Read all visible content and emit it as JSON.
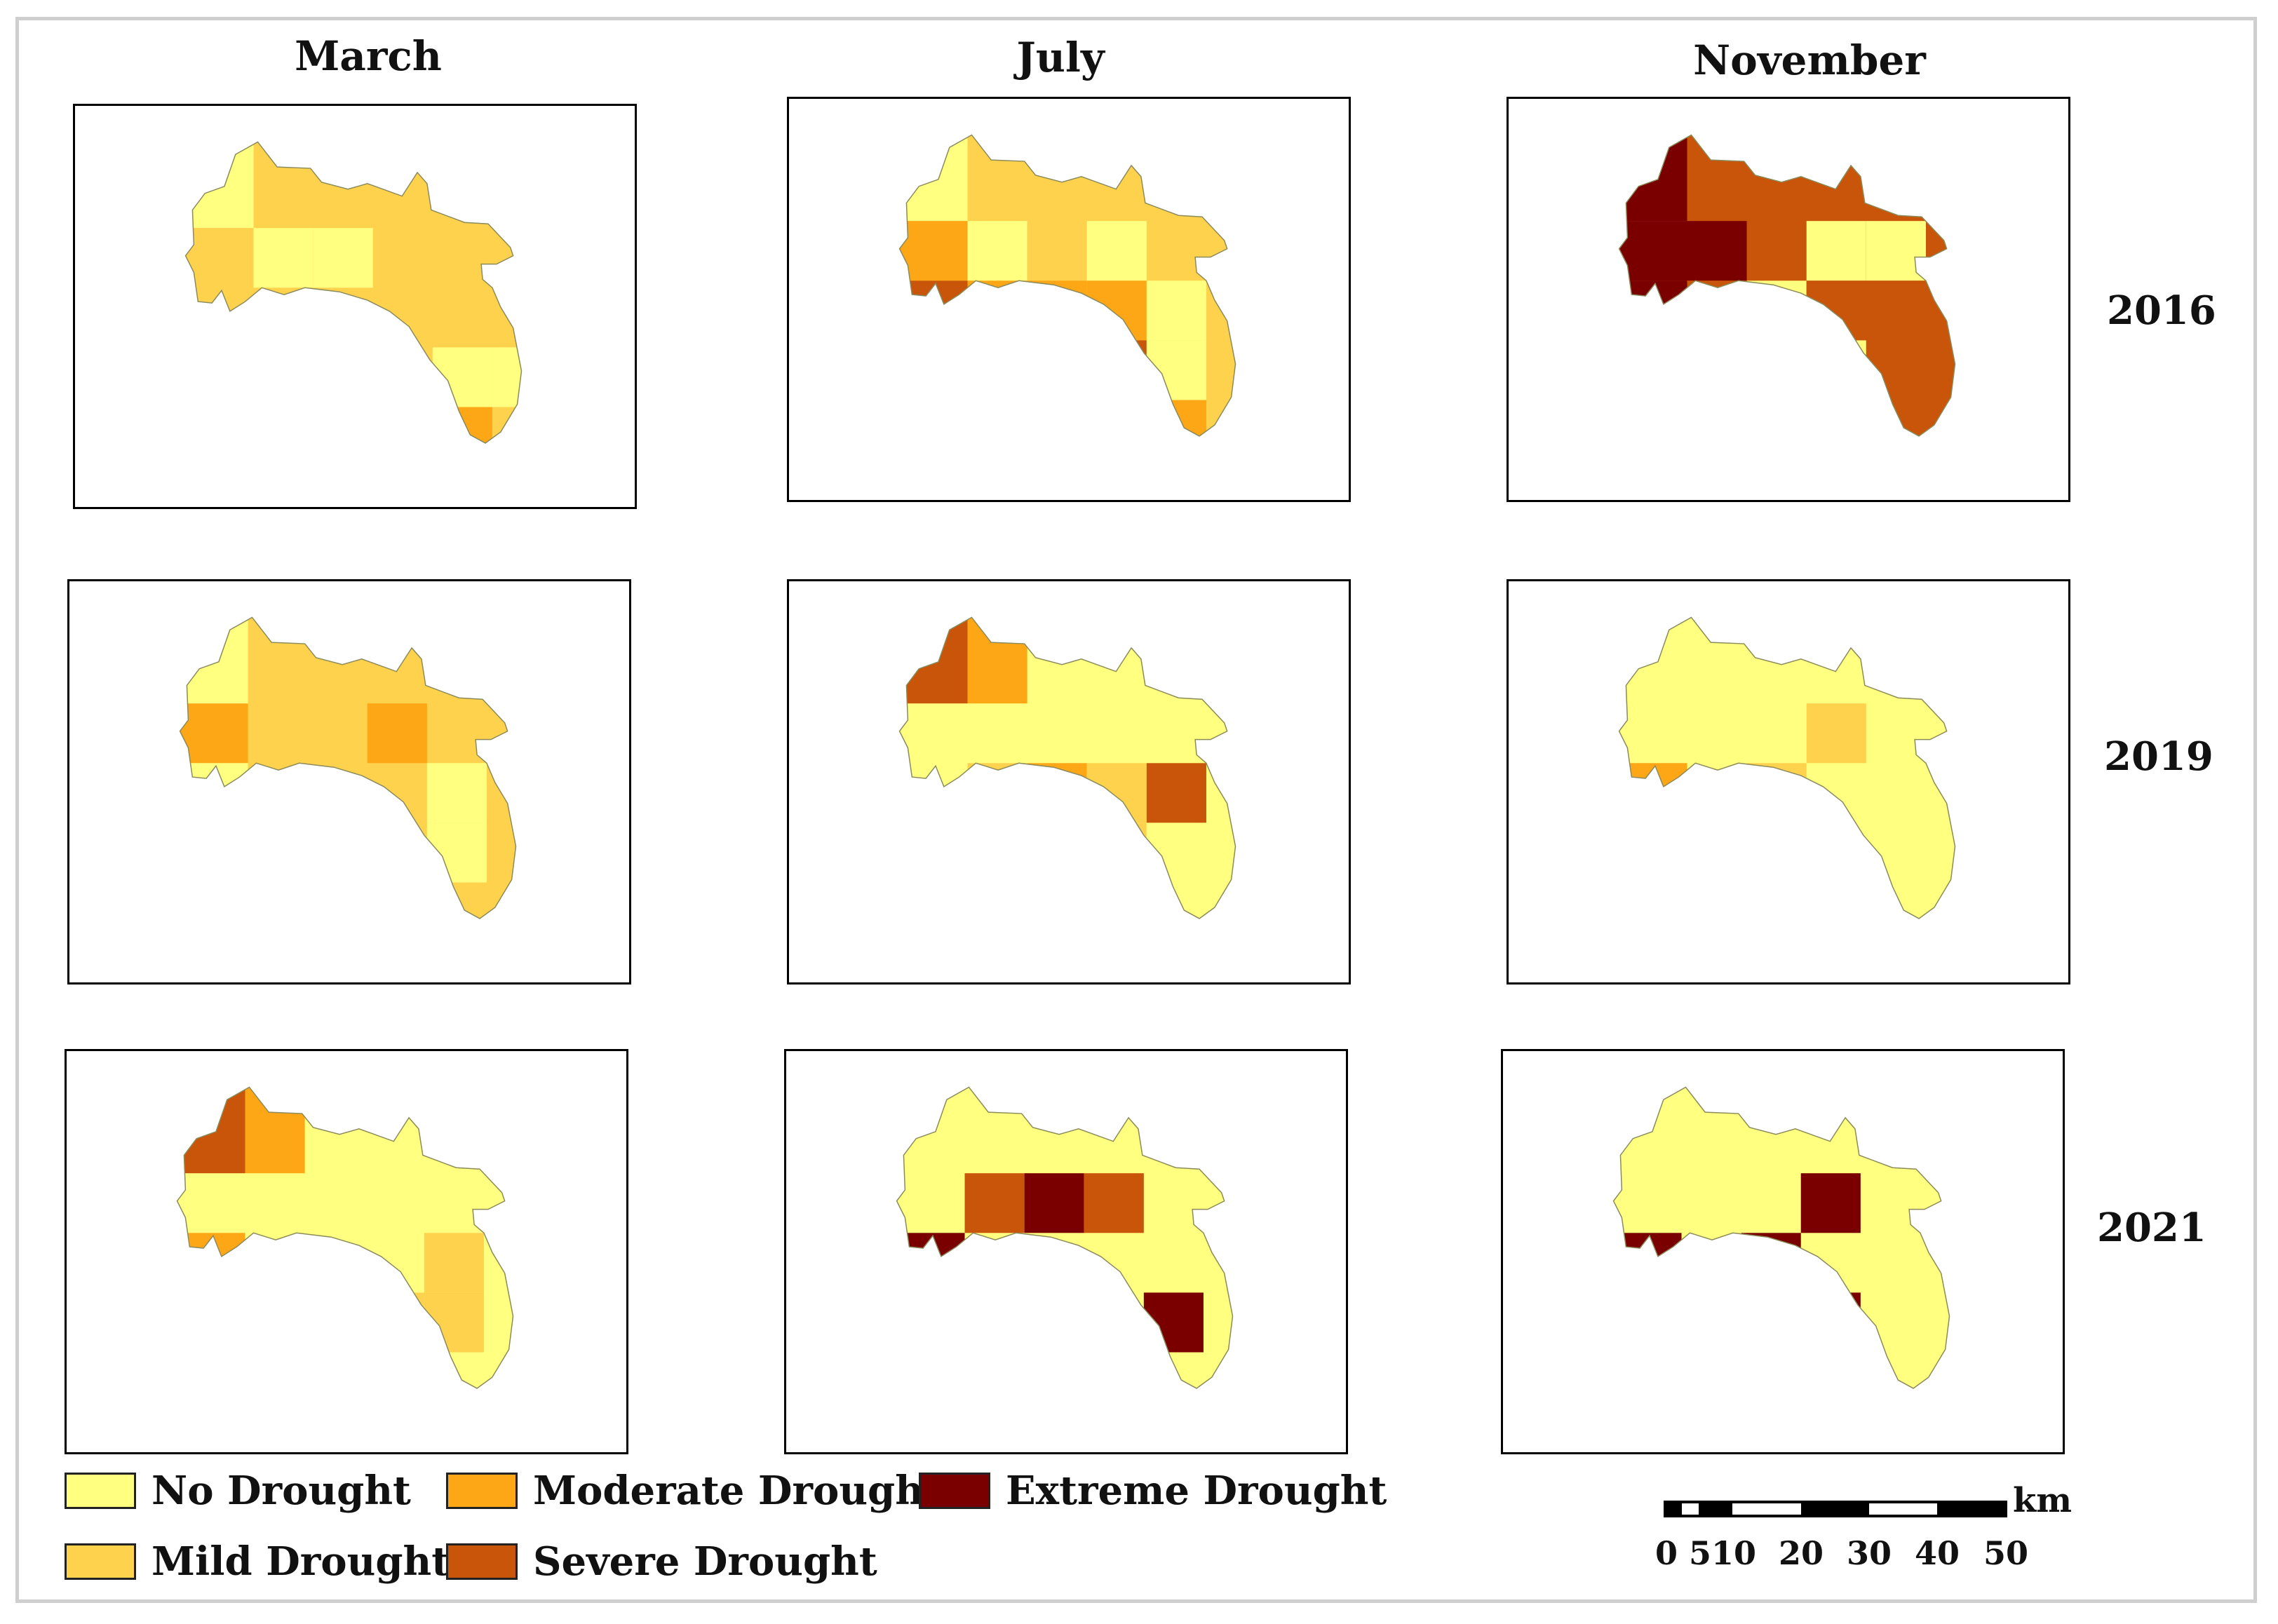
{
  "columns": [
    "March",
    "July",
    "November"
  ],
  "rows": [
    "2016",
    "2019",
    "2021"
  ],
  "classes": {
    "no": "#ffff80",
    "mild": "#ffd24d",
    "moderate": "#fda616",
    "severe": "#c8550a",
    "extreme": "#7a0000"
  },
  "legend": [
    {
      "label": "No Drought",
      "color": "#ffff80"
    },
    {
      "label": "Moderate Drought",
      "color": "#fda616"
    },
    {
      "label": "Extreme Drought",
      "color": "#7a0000"
    },
    {
      "label": "Mild Drought",
      "color": "#ffd24d"
    },
    {
      "label": "Severe Drought",
      "color": "#c8550a"
    }
  ],
  "scale_bar": {
    "unit": "km",
    "labels": [
      "0",
      "5",
      "10",
      "20",
      "30",
      "40",
      "50"
    ]
  },
  "maps": [
    {
      "year": "2016",
      "month": "March",
      "base": "mild",
      "cells": [
        [
          1,
          2,
          "no"
        ],
        [
          0,
          0,
          "no"
        ],
        [
          1,
          1,
          "no"
        ],
        [
          3,
          5,
          "no"
        ],
        [
          4,
          5,
          "no"
        ],
        [
          3,
          4,
          "no"
        ],
        [
          4,
          4,
          "moderate"
        ],
        [
          4,
          5,
          "mild"
        ],
        [
          5,
          5,
          "moderate"
        ],
        [
          1,
          0,
          "mild"
        ]
      ]
    },
    {
      "year": "2016",
      "month": "July",
      "base": "mild",
      "cells": [
        [
          0,
          0,
          "no"
        ],
        [
          1,
          0,
          "moderate"
        ],
        [
          1,
          1,
          "no"
        ],
        [
          1,
          2,
          "mild"
        ],
        [
          1,
          3,
          "no"
        ],
        [
          2,
          0,
          "severe"
        ],
        [
          2,
          1,
          "moderate"
        ],
        [
          2,
          2,
          "moderate"
        ],
        [
          2,
          3,
          "moderate"
        ],
        [
          2,
          4,
          "no"
        ],
        [
          3,
          3,
          "severe"
        ],
        [
          3,
          4,
          "no"
        ],
        [
          4,
          4,
          "moderate"
        ],
        [
          5,
          4,
          "no"
        ],
        [
          3,
          0,
          "moderate"
        ],
        [
          3,
          1,
          "mild"
        ],
        [
          3,
          2,
          "mild"
        ]
      ]
    },
    {
      "year": "2016",
      "month": "November",
      "base": "severe",
      "cells": [
        [
          0,
          0,
          "extreme"
        ],
        [
          1,
          0,
          "extreme"
        ],
        [
          1,
          1,
          "extreme"
        ],
        [
          2,
          0,
          "extreme"
        ],
        [
          3,
          0,
          "extreme"
        ],
        [
          1,
          2,
          "severe"
        ],
        [
          1,
          3,
          "no"
        ],
        [
          1,
          4,
          "no"
        ],
        [
          2,
          1,
          "severe"
        ],
        [
          2,
          2,
          "no"
        ],
        [
          2,
          3,
          "severe"
        ],
        [
          2,
          4,
          "severe"
        ],
        [
          3,
          2,
          "no"
        ],
        [
          3,
          3,
          "no"
        ],
        [
          3,
          4,
          "severe"
        ],
        [
          4,
          4,
          "severe"
        ]
      ]
    },
    {
      "year": "2019",
      "month": "March",
      "base": "mild",
      "cells": [
        [
          1,
          0,
          "moderate"
        ],
        [
          2,
          0,
          "no"
        ],
        [
          1,
          3,
          "moderate"
        ],
        [
          2,
          4,
          "no"
        ],
        [
          3,
          4,
          "no"
        ],
        [
          4,
          4,
          "mild"
        ],
        [
          0,
          0,
          "no"
        ],
        [
          3,
          0,
          "moderate"
        ]
      ]
    },
    {
      "year": "2019",
      "month": "July",
      "base": "no",
      "cells": [
        [
          0,
          0,
          "severe"
        ],
        [
          0,
          1,
          "moderate"
        ],
        [
          2,
          1,
          "mild"
        ],
        [
          2,
          2,
          "moderate"
        ],
        [
          2,
          3,
          "mild"
        ],
        [
          2,
          4,
          "severe"
        ],
        [
          3,
          3,
          "mild"
        ],
        [
          4,
          3,
          "mild"
        ],
        [
          3,
          4,
          "no"
        ],
        [
          3,
          0,
          "mild"
        ]
      ]
    },
    {
      "year": "2019",
      "month": "November",
      "base": "no",
      "cells": [
        [
          1,
          3,
          "mild"
        ],
        [
          2,
          2,
          "mild"
        ],
        [
          2,
          0,
          "moderate"
        ]
      ]
    },
    {
      "year": "2021",
      "month": "March",
      "base": "no",
      "cells": [
        [
          0,
          0,
          "severe"
        ],
        [
          0,
          1,
          "moderate"
        ],
        [
          2,
          0,
          "moderate"
        ],
        [
          2,
          4,
          "mild"
        ],
        [
          3,
          3,
          "mild"
        ],
        [
          3,
          4,
          "mild"
        ]
      ]
    },
    {
      "year": "2021",
      "month": "July",
      "base": "no",
      "cells": [
        [
          1,
          1,
          "severe"
        ],
        [
          1,
          2,
          "extreme"
        ],
        [
          1,
          3,
          "severe"
        ],
        [
          3,
          1,
          "extreme"
        ],
        [
          3,
          4,
          "extreme"
        ],
        [
          2,
          0,
          "extreme"
        ]
      ]
    },
    {
      "year": "2021",
      "month": "November",
      "base": "no",
      "cells": [
        [
          1,
          3,
          "extreme"
        ],
        [
          2,
          2,
          "extreme"
        ],
        [
          3,
          3,
          "extreme"
        ],
        [
          2,
          0,
          "extreme"
        ]
      ]
    }
  ]
}
